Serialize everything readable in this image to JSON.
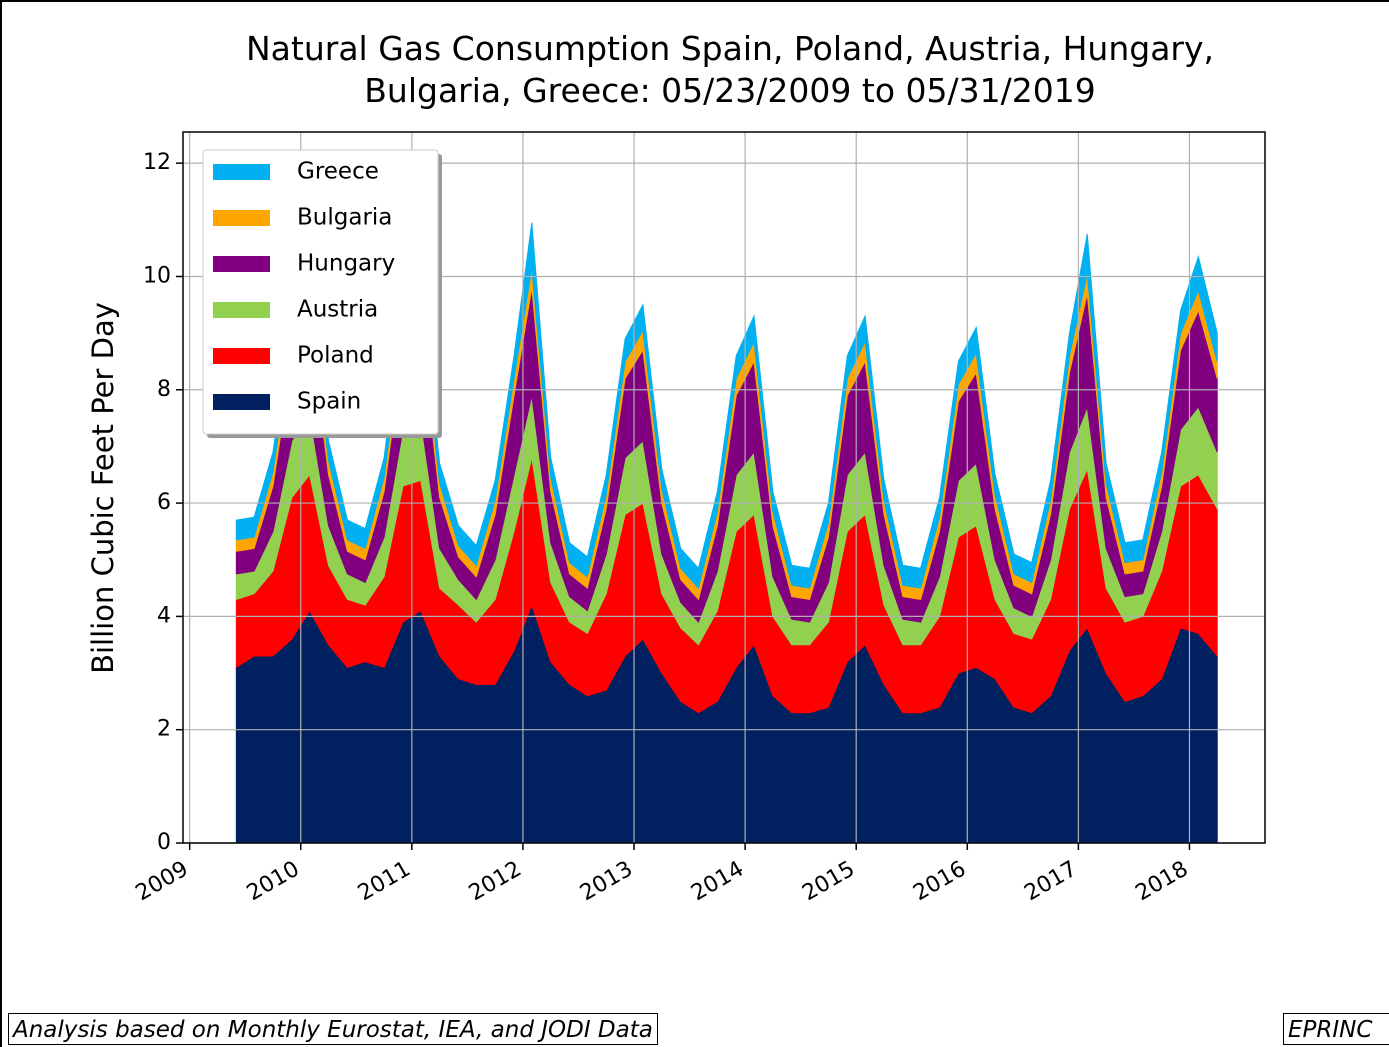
{
  "chart_data": {
    "type": "stacked_area",
    "title": "Natural Gas Consumption Spain, Poland, Austria, Hungary,\nBulgaria, Greece: 05/23/2009 to 05/31/2019",
    "ylabel": "Billion Cubic Feet Per Day",
    "notes": [
      "Analysis based on Monthly Eurostat, IEA,  and JODI Data",
      "EPRINC"
    ],
    "x": [
      2009.42,
      2009.58,
      2009.75,
      2009.92,
      2010.08,
      2010.25,
      2010.42,
      2010.58,
      2010.75,
      2010.92,
      2011.08,
      2011.25,
      2011.42,
      2011.58,
      2011.75,
      2011.92,
      2012.08,
      2012.25,
      2012.42,
      2012.58,
      2012.75,
      2012.92,
      2013.08,
      2013.25,
      2013.42,
      2013.58,
      2013.75,
      2013.92,
      2014.08,
      2014.25,
      2014.42,
      2014.58,
      2014.75,
      2014.92,
      2015.08,
      2015.25,
      2015.42,
      2015.58,
      2015.75,
      2015.92,
      2016.08,
      2016.25,
      2016.42,
      2016.58,
      2016.75,
      2016.92,
      2017.08,
      2017.25,
      2017.42,
      2017.58,
      2017.75,
      2017.92,
      2018.08,
      2018.25
    ],
    "series": [
      {
        "name": "Spain",
        "color": "#002060",
        "values": [
          3.1,
          3.3,
          3.3,
          3.6,
          4.1,
          3.5,
          3.1,
          3.2,
          3.1,
          3.9,
          4.1,
          3.3,
          2.9,
          2.8,
          2.8,
          3.4,
          4.2,
          3.2,
          2.8,
          2.6,
          2.7,
          3.3,
          3.6,
          3.0,
          2.5,
          2.3,
          2.5,
          3.1,
          3.5,
          2.6,
          2.3,
          2.3,
          2.4,
          3.2,
          3.5,
          2.8,
          2.3,
          2.3,
          2.4,
          3.0,
          3.1,
          2.9,
          2.4,
          2.3,
          2.6,
          3.4,
          3.8,
          3.0,
          2.5,
          2.6,
          2.9,
          3.8,
          3.7,
          3.3
        ]
      },
      {
        "name": "Poland",
        "color": "#ff0000",
        "values": [
          1.2,
          1.1,
          1.5,
          2.5,
          2.4,
          1.4,
          1.2,
          1.0,
          1.6,
          2.4,
          2.3,
          1.2,
          1.3,
          1.1,
          1.5,
          2.1,
          2.6,
          1.4,
          1.1,
          1.1,
          1.7,
          2.5,
          2.4,
          1.4,
          1.3,
          1.2,
          1.6,
          2.4,
          2.3,
          1.4,
          1.2,
          1.2,
          1.5,
          2.3,
          2.3,
          1.4,
          1.2,
          1.2,
          1.6,
          2.4,
          2.5,
          1.4,
          1.3,
          1.3,
          1.7,
          2.5,
          2.8,
          1.5,
          1.4,
          1.4,
          1.9,
          2.5,
          2.8,
          2.6
        ]
      },
      {
        "name": "Austria",
        "color": "#92d050",
        "values": [
          0.45,
          0.4,
          0.7,
          1.0,
          1.1,
          0.7,
          0.45,
          0.4,
          0.7,
          1.0,
          1.1,
          0.7,
          0.45,
          0.4,
          0.7,
          1.0,
          1.1,
          0.7,
          0.45,
          0.4,
          0.7,
          1.0,
          1.1,
          0.7,
          0.45,
          0.4,
          0.7,
          1.0,
          1.1,
          0.7,
          0.45,
          0.4,
          0.7,
          1.0,
          1.1,
          0.7,
          0.45,
          0.4,
          0.7,
          1.0,
          1.1,
          0.7,
          0.45,
          0.4,
          0.7,
          1.0,
          1.1,
          0.7,
          0.45,
          0.4,
          0.7,
          1.0,
          1.2,
          1.0
        ]
      },
      {
        "name": "Hungary",
        "color": "#800080",
        "values": [
          0.4,
          0.4,
          0.8,
          1.4,
          1.6,
          0.9,
          0.4,
          0.4,
          0.8,
          1.4,
          1.6,
          0.9,
          0.4,
          0.4,
          0.8,
          1.4,
          1.9,
          0.9,
          0.4,
          0.4,
          0.8,
          1.4,
          1.6,
          0.9,
          0.4,
          0.4,
          0.8,
          1.4,
          1.6,
          0.9,
          0.4,
          0.4,
          0.8,
          1.4,
          1.6,
          0.9,
          0.4,
          0.4,
          0.8,
          1.4,
          1.6,
          0.9,
          0.4,
          0.4,
          0.8,
          1.4,
          2.0,
          0.9,
          0.4,
          0.4,
          0.8,
          1.4,
          1.7,
          1.3
        ]
      },
      {
        "name": "Bulgaria",
        "color": "#ffa500",
        "values": [
          0.2,
          0.2,
          0.25,
          0.3,
          0.35,
          0.25,
          0.2,
          0.2,
          0.25,
          0.3,
          0.35,
          0.25,
          0.2,
          0.2,
          0.25,
          0.3,
          0.35,
          0.25,
          0.2,
          0.2,
          0.25,
          0.3,
          0.35,
          0.25,
          0.2,
          0.2,
          0.25,
          0.3,
          0.35,
          0.25,
          0.2,
          0.2,
          0.25,
          0.3,
          0.35,
          0.25,
          0.2,
          0.2,
          0.25,
          0.3,
          0.35,
          0.25,
          0.2,
          0.2,
          0.25,
          0.3,
          0.35,
          0.25,
          0.2,
          0.2,
          0.25,
          0.3,
          0.35,
          0.3
        ]
      },
      {
        "name": "Greece",
        "color": "#00b0f0",
        "values": [
          0.35,
          0.35,
          0.35,
          0.4,
          0.45,
          0.35,
          0.35,
          0.35,
          0.35,
          0.4,
          0.45,
          0.35,
          0.35,
          0.35,
          0.35,
          0.4,
          0.8,
          0.35,
          0.35,
          0.35,
          0.35,
          0.4,
          0.45,
          0.35,
          0.35,
          0.35,
          0.35,
          0.4,
          0.45,
          0.35,
          0.35,
          0.35,
          0.35,
          0.4,
          0.45,
          0.35,
          0.35,
          0.35,
          0.35,
          0.4,
          0.45,
          0.35,
          0.35,
          0.35,
          0.35,
          0.4,
          0.7,
          0.35,
          0.35,
          0.35,
          0.35,
          0.4,
          0.6,
          0.5
        ]
      }
    ],
    "xlim": [
      2008.94,
      2018.68
    ],
    "xticks": [
      2009,
      2010,
      2011,
      2012,
      2013,
      2014,
      2015,
      2016,
      2017,
      2018
    ],
    "ylim": [
      0,
      12.55
    ],
    "yticks": [
      0,
      2,
      4,
      6,
      8,
      10,
      12
    ],
    "grid": true,
    "legend": "upper left"
  }
}
